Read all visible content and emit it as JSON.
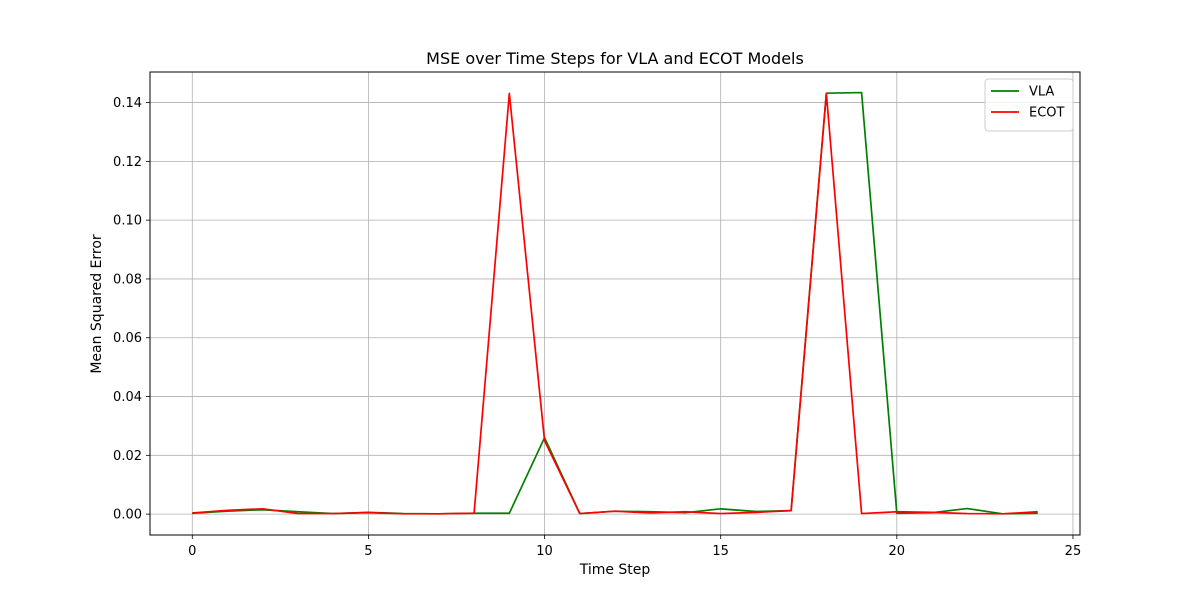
{
  "chart_data": {
    "type": "line",
    "title": "MSE over Time Steps for VLA and ECOT Models",
    "xlabel": "Time Step",
    "ylabel": "Mean Squared Error",
    "xlim": [
      -1.2,
      25.2
    ],
    "ylim": [
      -0.0071,
      0.1504
    ],
    "xticks": [
      0,
      5,
      10,
      15,
      20,
      25
    ],
    "yticks": [
      0.0,
      0.02,
      0.04,
      0.06,
      0.08,
      0.1,
      0.12,
      0.14
    ],
    "xtick_labels": [
      "0",
      "5",
      "10",
      "15",
      "20",
      "25"
    ],
    "ytick_labels": [
      "0.00",
      "0.02",
      "0.04",
      "0.06",
      "0.08",
      "0.10",
      "0.12",
      "0.14"
    ],
    "grid": true,
    "legend_position": "top-right",
    "x": [
      0,
      1,
      2,
      3,
      4,
      5,
      6,
      7,
      8,
      9,
      10,
      11,
      12,
      13,
      14,
      15,
      16,
      17,
      18,
      19,
      20,
      21,
      22,
      23,
      24
    ],
    "series": [
      {
        "name": "VLA",
        "color": "#008000",
        "values": [
          0.0003,
          0.001,
          0.0015,
          0.0008,
          0.0002,
          0.0006,
          0.0002,
          0.0001,
          0.0003,
          0.0003,
          0.026,
          0.0002,
          0.001,
          0.0008,
          0.0005,
          0.0018,
          0.0009,
          0.0012,
          0.1432,
          0.1434,
          0.0003,
          0.0005,
          0.0019,
          0.0001,
          0.0003
        ]
      },
      {
        "name": "ECOT",
        "color": "#ff0000",
        "values": [
          0.0004,
          0.0013,
          0.0018,
          0.0002,
          0.0002,
          0.0005,
          0.0001,
          0.0001,
          0.0003,
          0.1431,
          0.025,
          0.0002,
          0.001,
          0.0004,
          0.0008,
          0.0002,
          0.0006,
          0.0012,
          0.1431,
          0.0002,
          0.0008,
          0.0006,
          0.0002,
          0.0001,
          0.0008
        ]
      }
    ]
  }
}
